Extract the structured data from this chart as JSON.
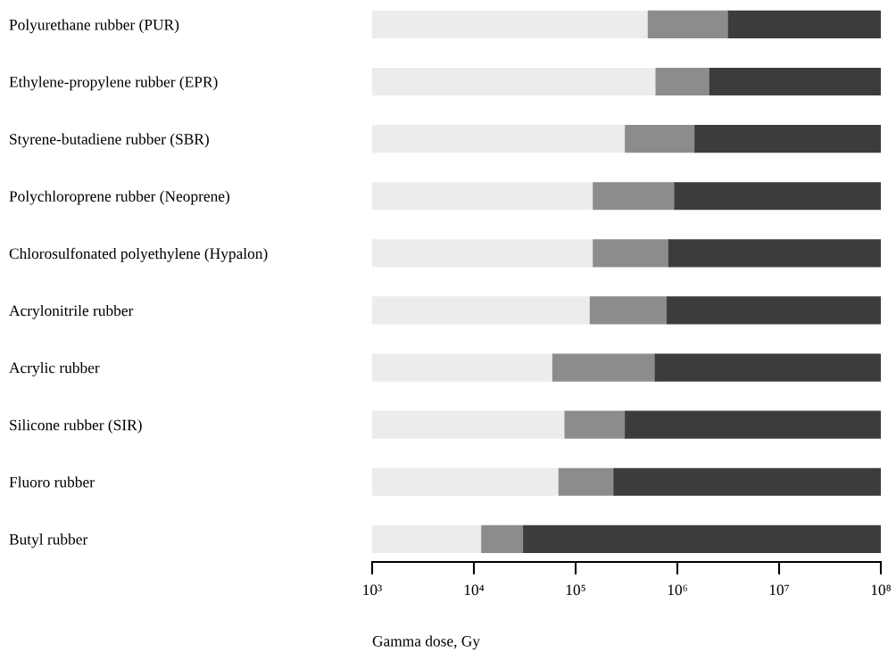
{
  "chart_data": {
    "type": "bar",
    "orientation": "horizontal",
    "stacked": true,
    "log": "x",
    "categories": [
      "Polyurethane rubber (PUR)",
      "Ethylene-propylene rubber (EPR)",
      "Styrene-butadiene rubber (SBR)",
      "Polychloroprene rubber (Neoprene)",
      "Chlorosulfonated polyethylene (Hypalon)",
      "Acrylonitrile rubber",
      "Acrylic rubber",
      "Silicone rubber (SIR)",
      "Fluoro rubber",
      "Butyl rubber"
    ],
    "series": [
      {
        "color": "#ececec",
        "values": [
          520000,
          620000,
          310000,
          150000,
          150000,
          140000,
          60000,
          79000,
          69000,
          12000
        ]
      },
      {
        "color": "#8c8c8c",
        "values": [
          2680000,
          1480000,
          1190000,
          800000,
          680000,
          660000,
          550000,
          231000,
          171000,
          19000
        ]
      },
      {
        "color": "#3c3c3c",
        "values": [
          96800000,
          97900000,
          98500000,
          99050000,
          99170000,
          99200000,
          99390000,
          99690000,
          99760000,
          99969000
        ]
      }
    ],
    "xlim": [
      1000,
      100000000
    ],
    "xticks": [
      {
        "value": 1000,
        "label": "10³"
      },
      {
        "value": 10000,
        "label": "10⁴"
      },
      {
        "value": 100000,
        "label": "10⁵"
      },
      {
        "value": 1000000,
        "label": "10⁶"
      },
      {
        "value": 10000000,
        "label": "10⁷"
      },
      {
        "value": 100000000,
        "label": "10⁸"
      }
    ],
    "xlabel": "Gamma dose, Gy",
    "grid": false,
    "legend": false
  }
}
